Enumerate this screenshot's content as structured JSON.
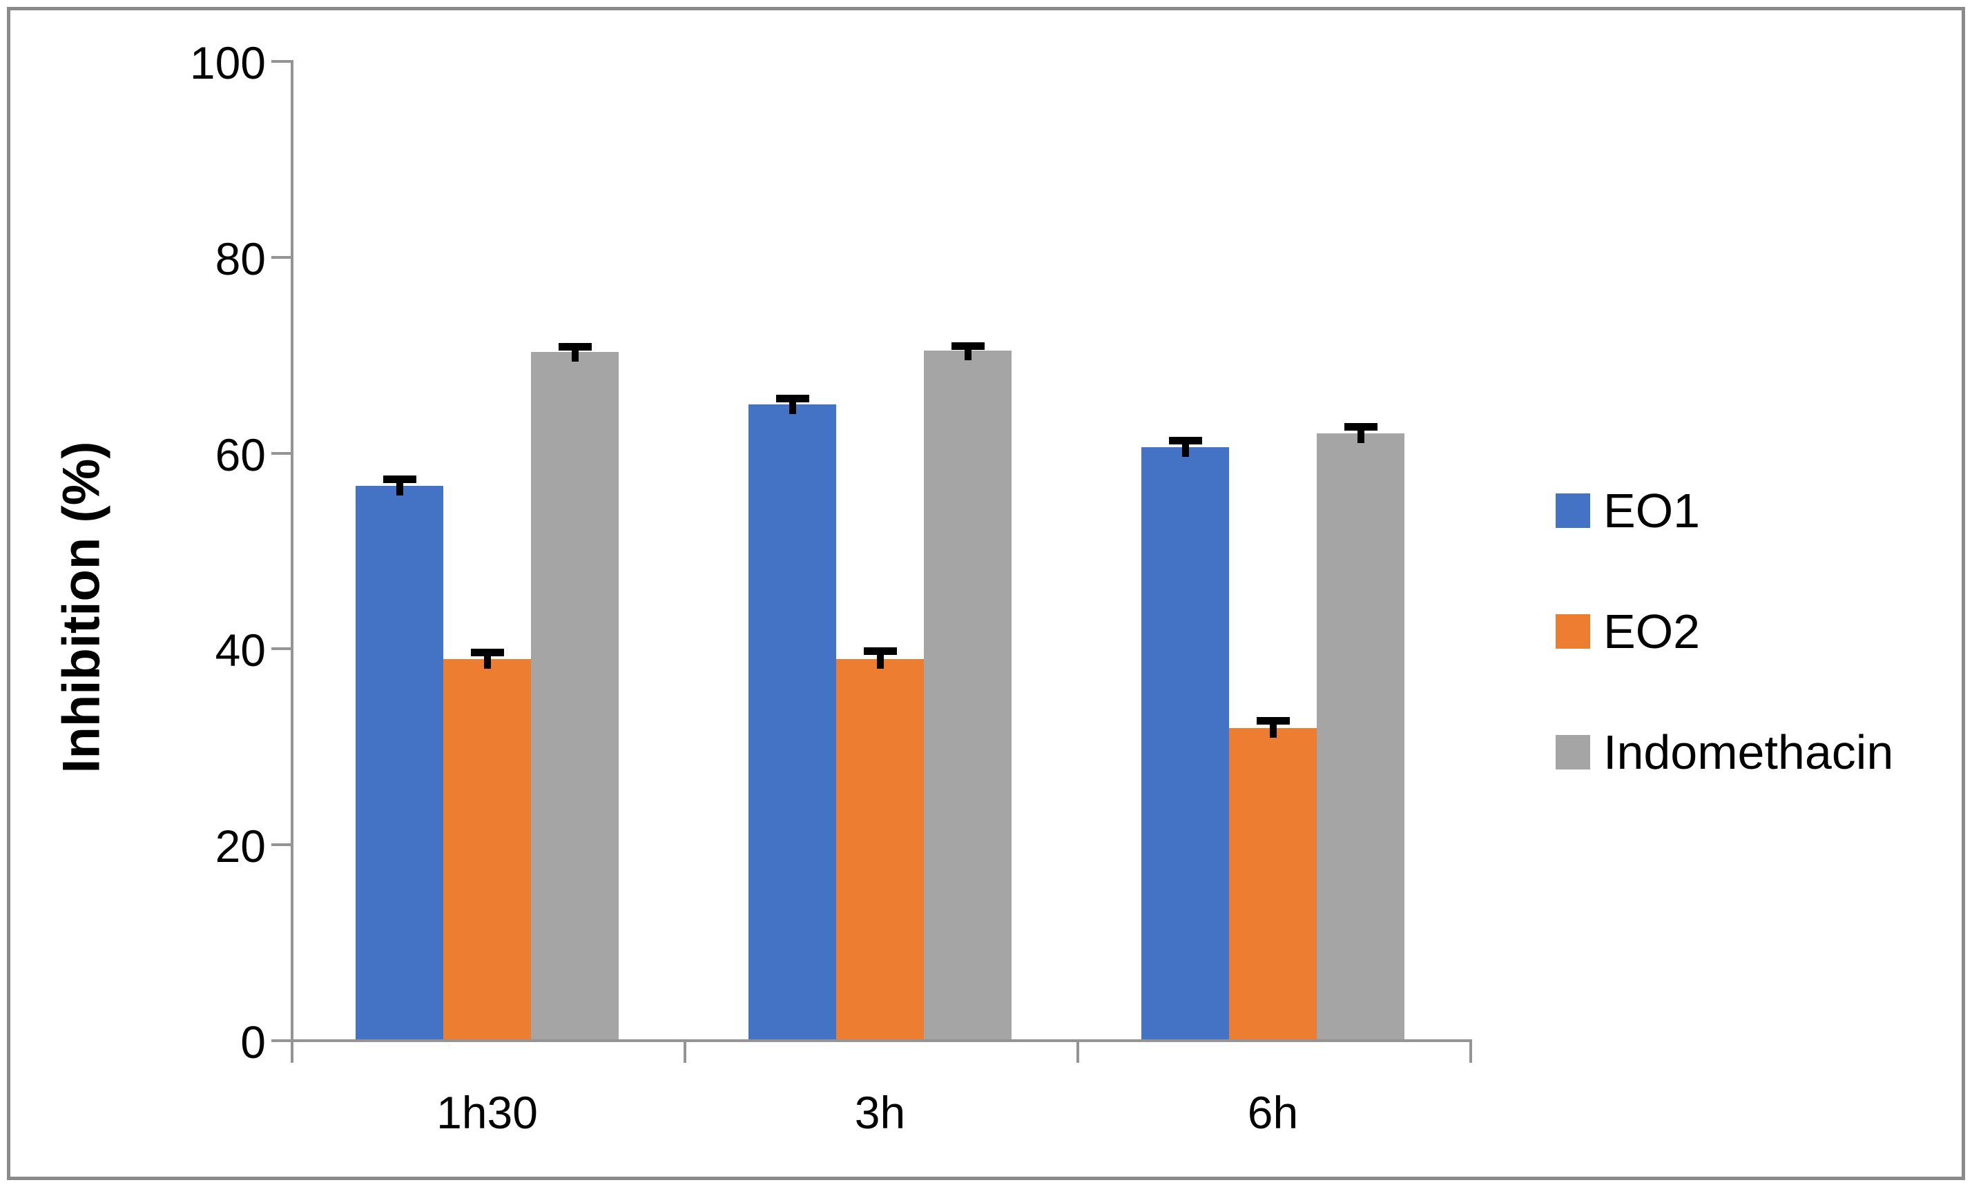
{
  "figure": {
    "background": "#ffffff",
    "frame_color": "#8a8a8a",
    "axis_color": "#949494",
    "error_bar_color": "#000000"
  },
  "chart_data": {
    "type": "bar",
    "title": "",
    "xlabel": "",
    "ylabel": "Inhibition (%)",
    "categories": [
      "1h30",
      "3h",
      "6h"
    ],
    "series": [
      {
        "name": "EO1",
        "color": "#4472C4",
        "values": [
          56.5,
          64.8,
          60.5
        ],
        "errors": [
          1.1,
          1.0,
          1.0
        ]
      },
      {
        "name": "EO2",
        "color": "#ED7D31",
        "values": [
          38.8,
          38.8,
          31.8
        ],
        "errors": [
          1.1,
          1.2,
          1.1
        ]
      },
      {
        "name": "Indomethacin",
        "color": "#A5A5A5",
        "values": [
          70.2,
          70.3,
          61.9
        ],
        "errors": [
          0.9,
          0.9,
          1.0
        ]
      }
    ],
    "ylim": [
      0,
      100
    ],
    "yticks": [
      0,
      20,
      40,
      60,
      80,
      100
    ],
    "grid": false,
    "error_bars": "upper",
    "legend_position": "right"
  },
  "legend": {
    "items": [
      {
        "label": "EO1",
        "color": "#4472C4"
      },
      {
        "label": "EO2",
        "color": "#ED7D31"
      },
      {
        "label": "Indomethacin",
        "color": "#A5A5A5"
      }
    ]
  }
}
